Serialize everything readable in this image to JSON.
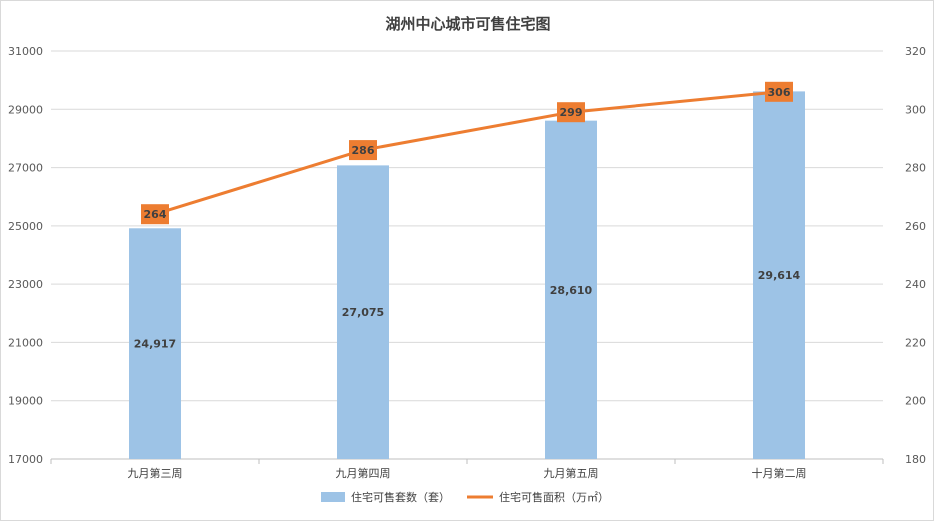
{
  "chart_data": {
    "type": "bar+line",
    "title": "湖州中心城市可售住宅图",
    "categories": [
      "九月第三周",
      "九月第四周",
      "九月第五周",
      "十月第二周"
    ],
    "series": [
      {
        "name": "住宅可售套数（套）",
        "type": "bar",
        "axis": "left",
        "values": [
          24917,
          27075,
          28610,
          29614
        ],
        "labels": [
          "24,917",
          "27,075",
          "28,610",
          "29,614"
        ],
        "color": "#9dc3e6"
      },
      {
        "name": "住宅可售面积（万㎡）",
        "type": "line",
        "axis": "right",
        "values": [
          264,
          286,
          299,
          306
        ],
        "labels": [
          "264",
          "286",
          "299",
          "306"
        ],
        "color": "#ed7d31"
      }
    ],
    "y_left": {
      "min": 17000,
      "max": 31000,
      "ticks": [
        17000,
        19000,
        21000,
        23000,
        25000,
        27000,
        29000,
        31000
      ]
    },
    "y_right": {
      "min": 180,
      "max": 320,
      "ticks": [
        180,
        200,
        220,
        240,
        260,
        280,
        300,
        320
      ]
    },
    "grid": true,
    "legend": "bottom"
  }
}
